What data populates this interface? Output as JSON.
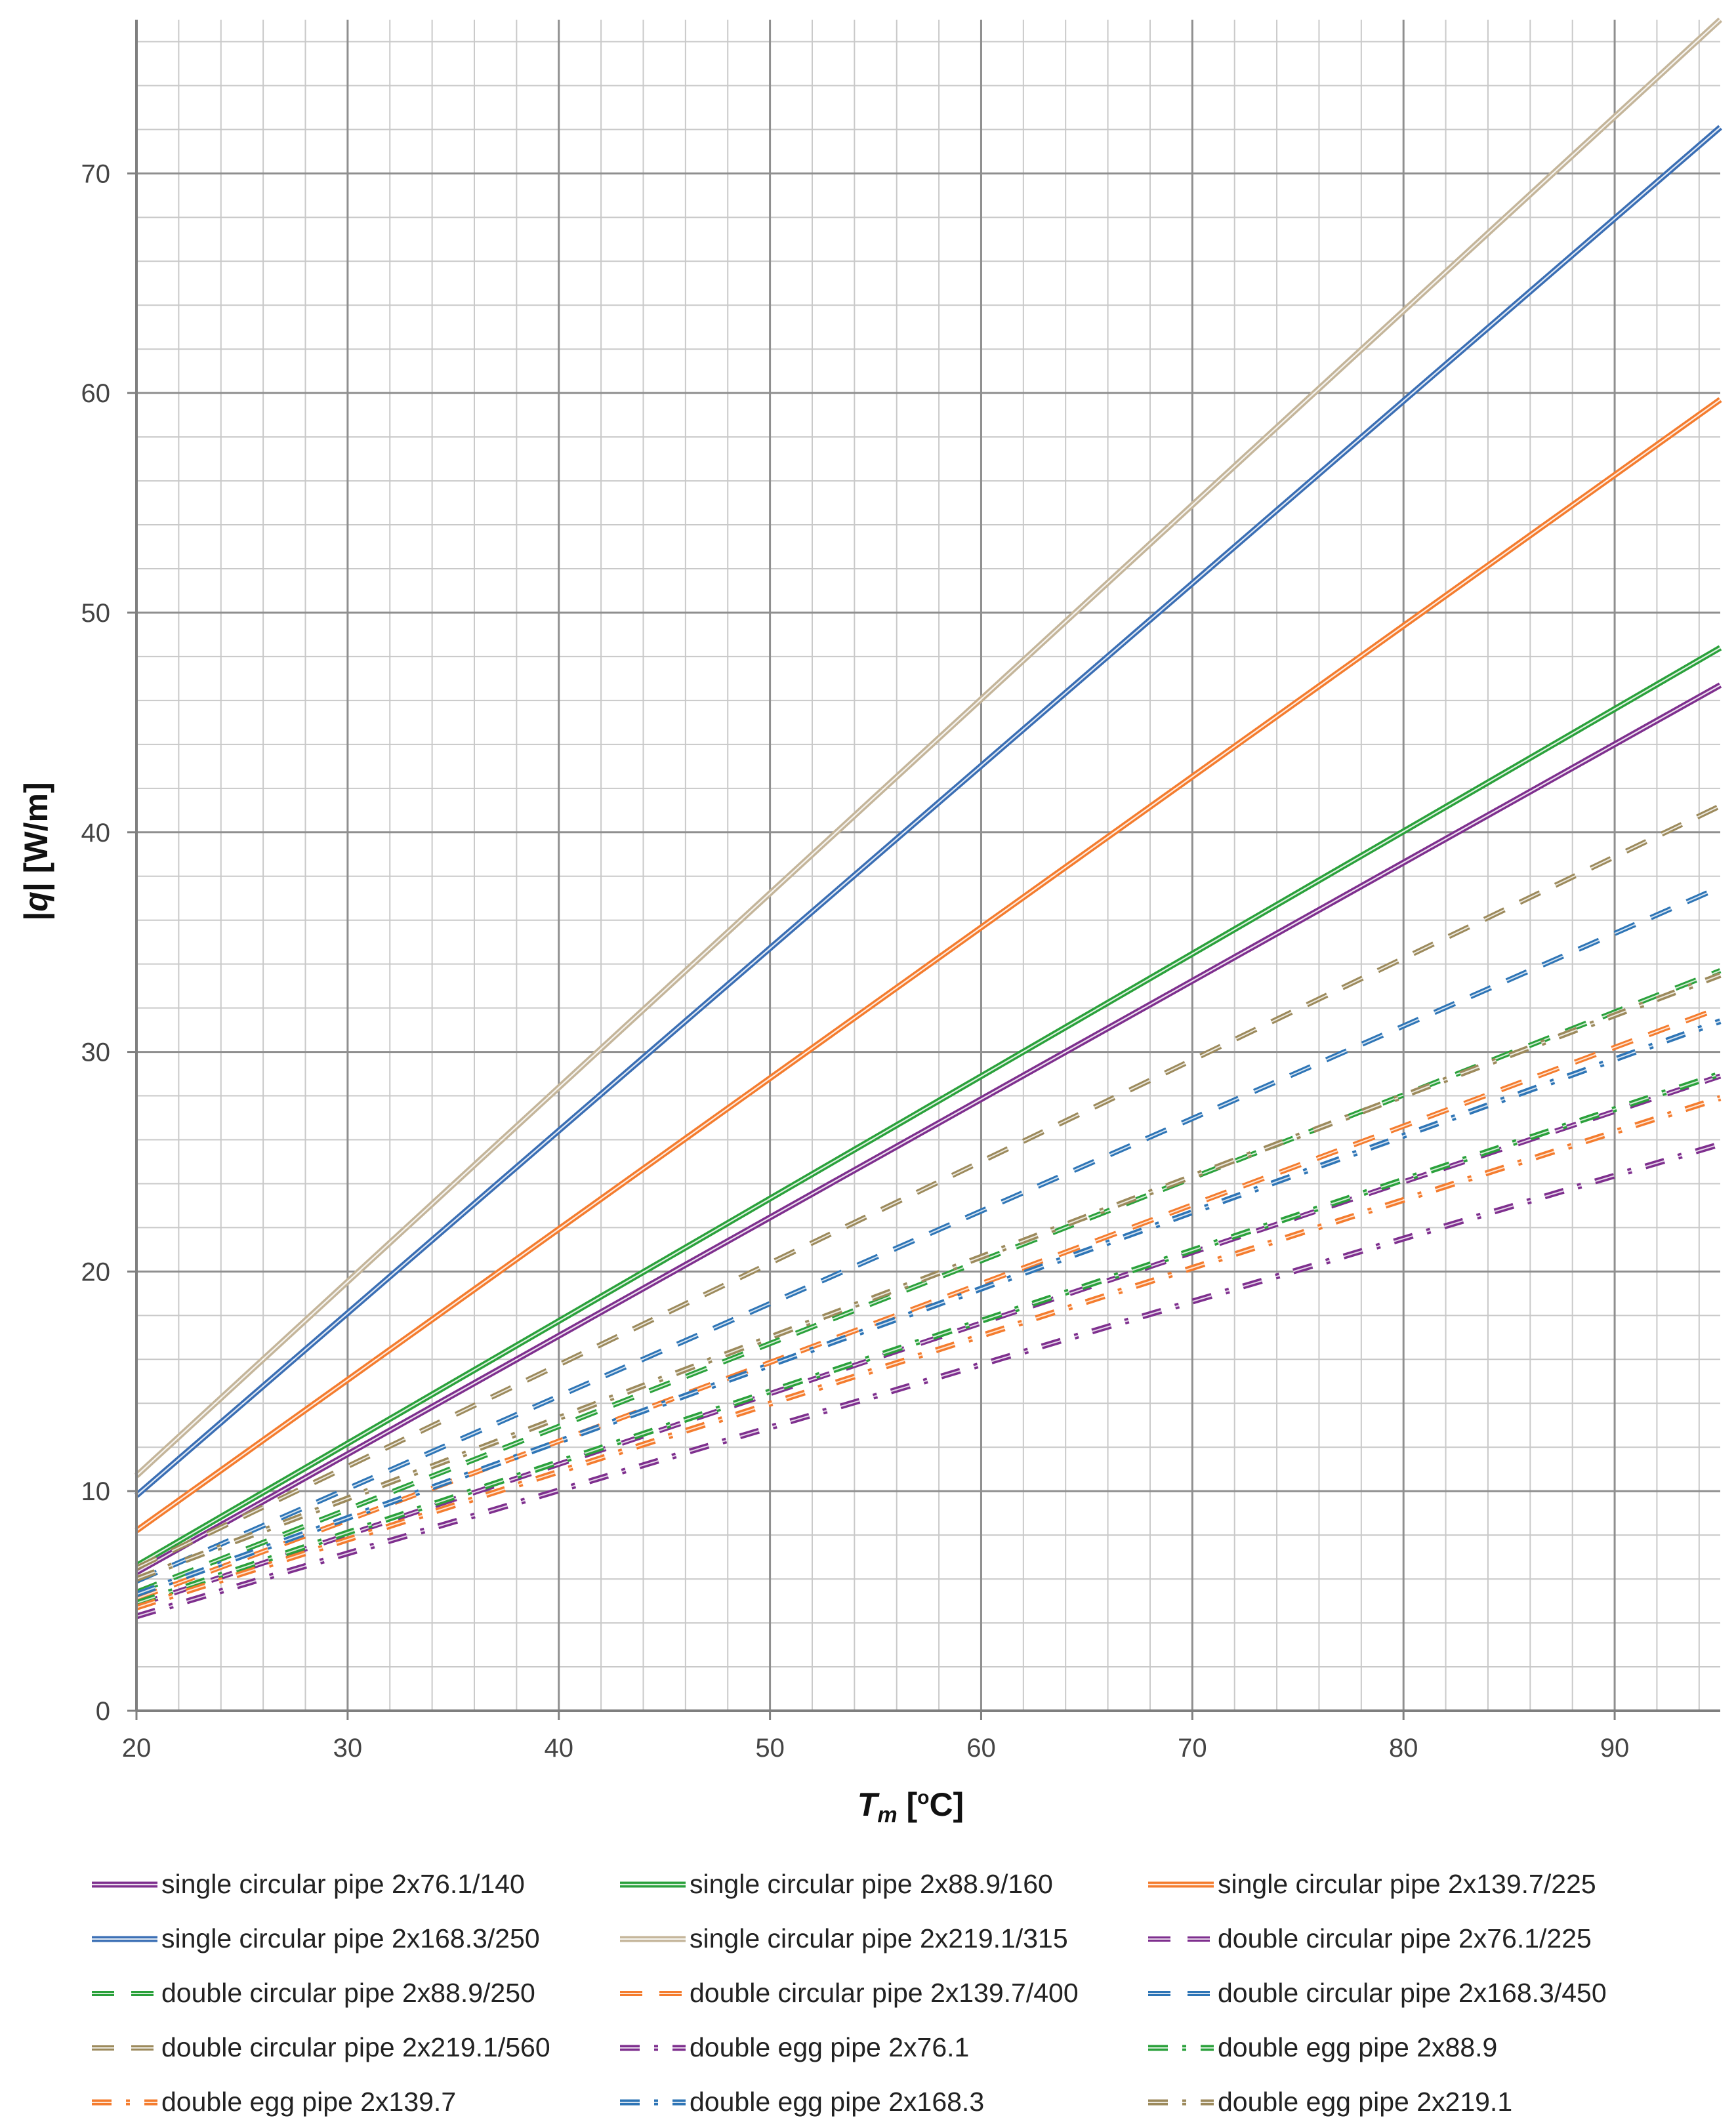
{
  "chart_data": {
    "type": "line",
    "title": "",
    "xlabel_main": "T",
    "xlabel_sub": "m",
    "xlabel_unit_pre": " [",
    "xlabel_unit_sup": "o",
    "xlabel_unit_post": "C]",
    "ylabel_left": "|",
    "ylabel_var": "q",
    "ylabel_rest": "| [W/m]",
    "xlim": [
      20,
      95
    ],
    "ylim": [
      0,
      77
    ],
    "x_ticks": [
      20,
      30,
      40,
      50,
      60,
      70,
      80,
      90
    ],
    "y_ticks": [
      0,
      10,
      20,
      30,
      40,
      50,
      60,
      70
    ],
    "x_tick_labels": [
      "20",
      "30",
      "40",
      "50",
      "60",
      "70",
      "80",
      "90"
    ],
    "y_tick_labels": [
      "0",
      "10",
      "20",
      "30",
      "40",
      "50",
      "60",
      "70"
    ],
    "grid": true,
    "legend_position": "bottom",
    "series": [
      {
        "name": "single circular pipe 2x76.1/140",
        "color": "#7e2f8e",
        "style": "solid",
        "x": [
          20,
          95
        ],
        "y": [
          6.3,
          46.7
        ]
      },
      {
        "name": "single circular pipe 2x88.9/160",
        "color": "#2aa13b",
        "style": "solid",
        "x": [
          20,
          95
        ],
        "y": [
          6.6,
          48.4
        ]
      },
      {
        "name": "single circular pipe 2x139.7/225",
        "color": "#f47c2e",
        "style": "solid",
        "x": [
          20,
          95
        ],
        "y": [
          8.2,
          59.7
        ]
      },
      {
        "name": "single circular pipe 2x168.3/250",
        "color": "#3a6eb4",
        "style": "solid",
        "x": [
          20,
          95
        ],
        "y": [
          9.8,
          72.1
        ]
      },
      {
        "name": "single circular pipe 2x219.1/315",
        "color": "#c4b59a",
        "style": "solid",
        "x": [
          20,
          95
        ],
        "y": [
          10.7,
          77.0
        ]
      },
      {
        "name": "double circular pipe 2x76.1/225",
        "color": "#7e2f8e",
        "style": "dash",
        "x": [
          20,
          95
        ],
        "y": [
          4.8,
          28.9
        ]
      },
      {
        "name": "double circular pipe 2x88.9/250",
        "color": "#2aa13b",
        "style": "dash",
        "x": [
          20,
          95
        ],
        "y": [
          5.4,
          33.7
        ]
      },
      {
        "name": "double circular pipe 2x139.7/400",
        "color": "#f47c2e",
        "style": "dash",
        "x": [
          20,
          95
        ],
        "y": [
          5.1,
          32.0
        ]
      },
      {
        "name": "double circular pipe 2x168.3/450",
        "color": "#2e75b6",
        "style": "dash",
        "x": [
          20,
          95
        ],
        "y": [
          5.9,
          37.5
        ]
      },
      {
        "name": "double circular pipe 2x219.1/560",
        "color": "#9c8a5c",
        "style": "dash",
        "x": [
          20,
          95
        ],
        "y": [
          6.5,
          41.2
        ]
      },
      {
        "name": "double egg pipe 2x76.1",
        "color": "#7e2f8e",
        "style": "dashdot",
        "x": [
          20,
          95
        ],
        "y": [
          4.3,
          25.8
        ]
      },
      {
        "name": "double egg pipe 2x88.9",
        "color": "#2aa13b",
        "style": "dashdot",
        "x": [
          20,
          95
        ],
        "y": [
          4.9,
          29.0
        ]
      },
      {
        "name": "double egg pipe 2x139.7",
        "color": "#f47c2e",
        "style": "dashdot",
        "x": [
          20,
          95
        ],
        "y": [
          4.7,
          27.9
        ]
      },
      {
        "name": "double egg pipe 2x168.3",
        "color": "#2e75b6",
        "style": "dashdot",
        "x": [
          20,
          95
        ],
        "y": [
          5.3,
          31.4
        ]
      },
      {
        "name": "double egg pipe 2x219.1",
        "color": "#9c8a5c",
        "style": "dashdot",
        "x": [
          20,
          95
        ],
        "y": [
          6.0,
          33.5
        ]
      }
    ]
  }
}
